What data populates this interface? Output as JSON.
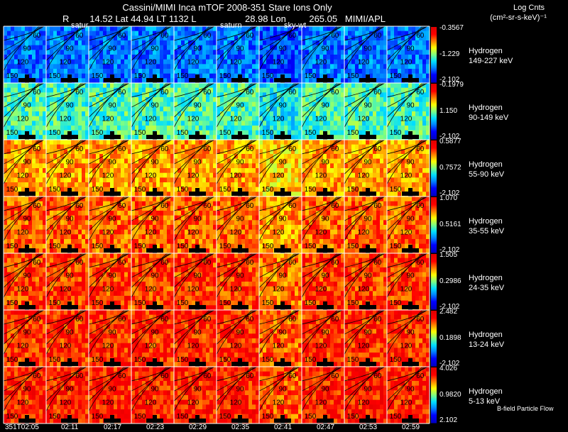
{
  "header": {
    "title": "Cassini/MIMI Inca mTOF  2008-351   Stare    Ions Only",
    "position_line": "R        14.52 Lat 44.94 LT 1132 L",
    "position_line2": "28.98 Lon         265.05   MIMI/APL",
    "units_label": "Log Cnts",
    "units_formula": "(cm²-sr-s-keV)⁻¹"
  },
  "frame_labels": {
    "f1": "satur",
    "f2": "saturn",
    "f3": "sky-wt"
  },
  "contour_labels": [
    "60",
    "90",
    "120",
    "150"
  ],
  "footer_text": "B-field Particle Flow",
  "chart_data": {
    "type": "heatmap",
    "title": "Cassini/MIMI Inca mTOF  2008-351   Stare    Ions Only",
    "time_labels": [
      "351T02:05",
      "02:11",
      "02:17",
      "02:23",
      "02:29",
      "02:35",
      "02:41",
      "02:47",
      "02:53",
      "02:59"
    ],
    "colormap": [
      "#0000c8",
      "#0000ff",
      "#0080ff",
      "#00e0ff",
      "#80ff80",
      "#ffff00",
      "#ff8000",
      "#ff0000",
      "#e00000"
    ],
    "bands": [
      {
        "species": "Hydrogen",
        "energy": "149-227 keV",
        "max": "-0.3567",
        "mid": "-1.229",
        "min": "-2.102",
        "level": 0.25
      },
      {
        "species": "Hydrogen",
        "energy": "90-149 keV",
        "max": "-0.1979",
        "mid": "1.150",
        "min": "-2.102",
        "level": 0.45
      },
      {
        "species": "Hydrogen",
        "energy": "55-90 keV",
        "max": "0.5877",
        "mid": "0.7572",
        "min": "-2.102",
        "level": 0.72
      },
      {
        "species": "Hydrogen",
        "energy": "35-55 keV",
        "max": "1.070",
        "mid": "0.5161",
        "min": "-2.102",
        "level": 0.78
      },
      {
        "species": "Hydrogen",
        "energy": "24-35 keV",
        "max": "1.505",
        "mid": "0.2986",
        "min": "-2.102",
        "level": 0.82
      },
      {
        "species": "Hydrogen",
        "energy": "13-24 keV",
        "max": "2.482",
        "mid": "0.1898",
        "min": "-2.102",
        "level": 0.84
      },
      {
        "species": "Hydrogen",
        "energy": "5-13 keV",
        "max": "4.026",
        "mid": "0.9820",
        "min": "2.102",
        "level": 0.86
      }
    ]
  }
}
